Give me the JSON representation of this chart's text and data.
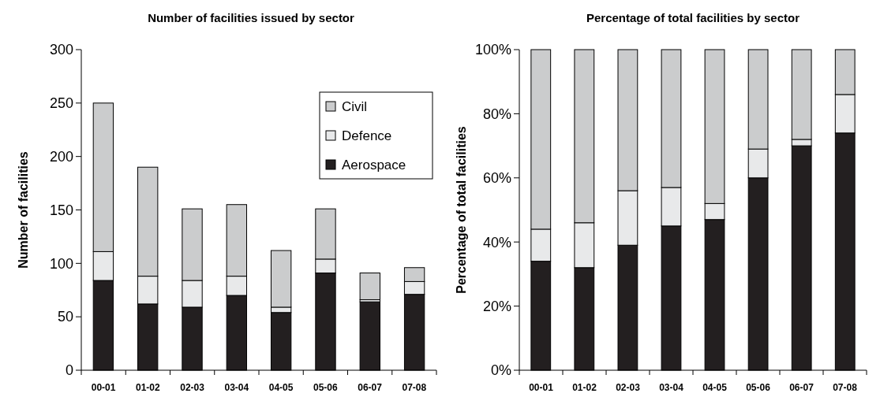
{
  "chart_data": [
    {
      "type": "bar",
      "title": "Number of facilities issued by sector",
      "ylabel": "Number of facilities",
      "stacked": true,
      "legend": "top right",
      "categories": [
        "00-01",
        "01-02",
        "02-03",
        "03-04",
        "04-05",
        "05-06",
        "06-07",
        "07-08"
      ],
      "ylim": [
        0,
        300
      ],
      "yticks": [
        0,
        50,
        100,
        150,
        200,
        250,
        300
      ],
      "series": [
        {
          "name": "Aerospace",
          "color": "#231f20",
          "values": [
            84,
            62,
            59,
            70,
            54,
            91,
            64,
            71
          ]
        },
        {
          "name": "Defence",
          "color": "#e8e9ea",
          "values": [
            27,
            26,
            25,
            18,
            5,
            13,
            2,
            12
          ]
        },
        {
          "name": "Civil",
          "color": "#cbcccd",
          "values": [
            139,
            102,
            67,
            67,
            53,
            47,
            25,
            13
          ]
        }
      ]
    },
    {
      "type": "bar",
      "title": "Percentage of total facilities by sector",
      "ylabel": "Percentage of total facilities",
      "stacked": true,
      "categories": [
        "00-01",
        "01-02",
        "02-03",
        "03-04",
        "04-05",
        "05-06",
        "06-07",
        "07-08"
      ],
      "ylim": [
        0,
        100
      ],
      "yticks": [
        {
          "value": 0,
          "label": "0%"
        },
        {
          "value": 20,
          "label": "20%"
        },
        {
          "value": 40,
          "label": "40%"
        },
        {
          "value": 60,
          "label": "60%"
        },
        {
          "value": 80,
          "label": "80%"
        },
        {
          "value": 100,
          "label": "100%"
        }
      ],
      "series": [
        {
          "color": "#231f20",
          "values": [
            34,
            32,
            39,
            45,
            47,
            60,
            70,
            74
          ]
        },
        {
          "color": "#e8e9ea",
          "values": [
            10,
            14,
            17,
            12,
            5,
            9,
            2,
            12
          ]
        },
        {
          "color": "#cbcccd",
          "values": [
            56,
            54,
            44,
            43,
            48,
            31,
            28,
            14
          ]
        }
      ]
    }
  ]
}
